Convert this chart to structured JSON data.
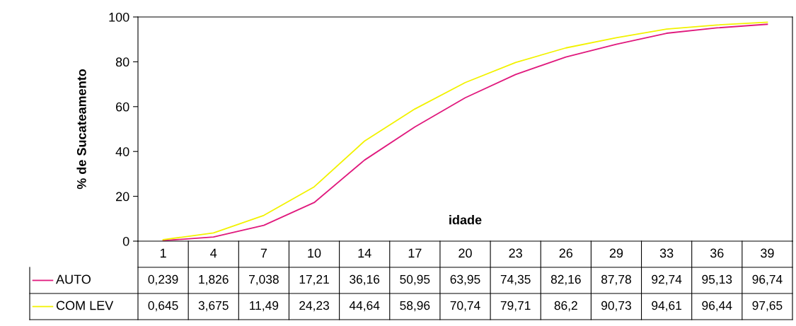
{
  "chart_data": {
    "type": "line",
    "xlabel": "idade",
    "ylabel": "% de Sucateamento",
    "categories": [
      "1",
      "4",
      "7",
      "10",
      "14",
      "17",
      "20",
      "23",
      "26",
      "29",
      "33",
      "36",
      "39"
    ],
    "series": [
      {
        "name": "AUTO",
        "color": "#e0197d",
        "values": [
          0.239,
          1.826,
          7.038,
          17.21,
          36.16,
          50.95,
          63.95,
          74.35,
          82.16,
          87.78,
          92.74,
          95.13,
          96.74
        ],
        "value_labels": [
          "0,239",
          "1,826",
          "7,038",
          "17,21",
          "36,16",
          "50,95",
          "63,95",
          "74,35",
          "82,16",
          "87,78",
          "92,74",
          "95,13",
          "96,74"
        ]
      },
      {
        "name": "COM LEV",
        "color": "#f2f200",
        "values": [
          0.645,
          3.675,
          11.49,
          24.23,
          44.64,
          58.96,
          70.74,
          79.71,
          86.2,
          90.73,
          94.61,
          96.44,
          97.65
        ],
        "value_labels": [
          "0,645",
          "3,675",
          "11,49",
          "24,23",
          "44,64",
          "58,96",
          "70,74",
          "79,71",
          "86,2",
          "90,73",
          "94,61",
          "96,44",
          "97,65"
        ]
      }
    ],
    "ylim": [
      0,
      100
    ],
    "yticks": [
      0,
      20,
      40,
      60,
      80,
      100
    ],
    "grid": false,
    "legend": "bottom",
    "marker": "none",
    "line_style": "solid"
  }
}
